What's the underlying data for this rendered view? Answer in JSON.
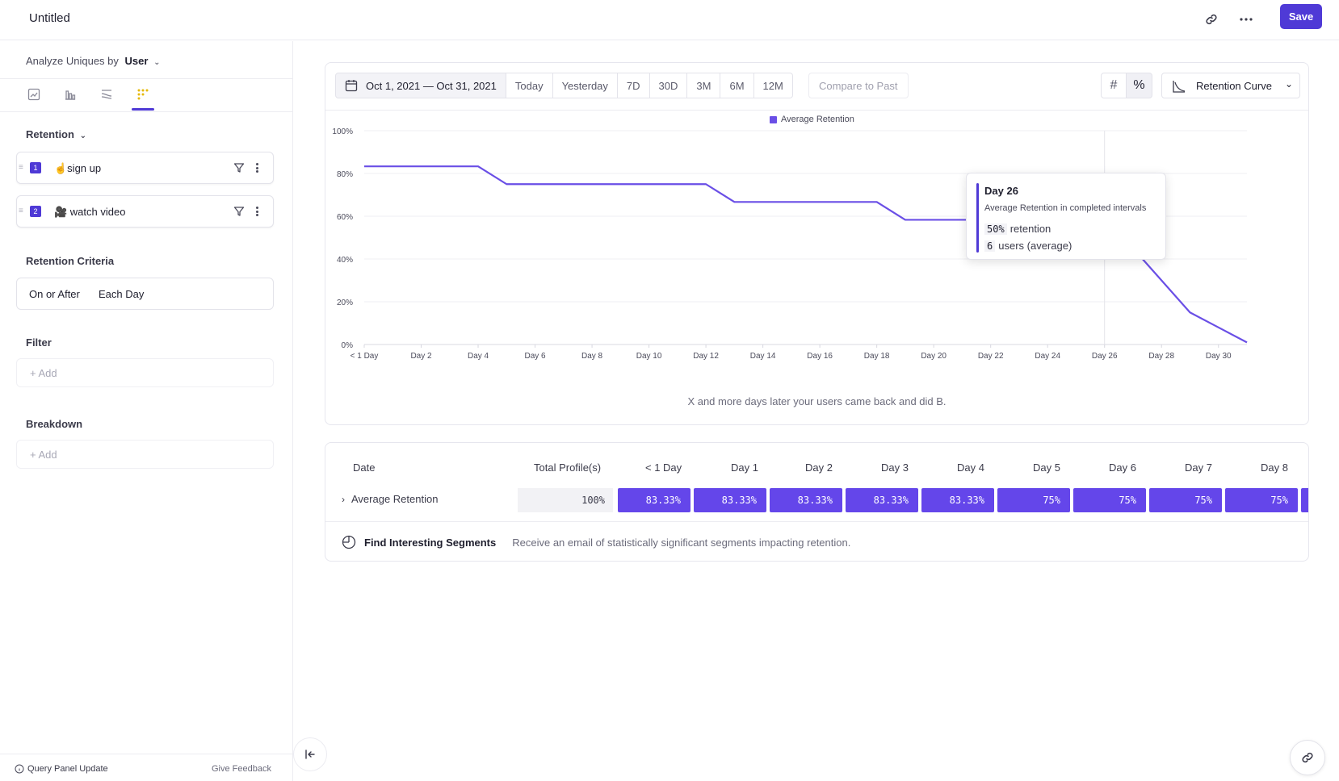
{
  "header": {
    "title": "Untitled",
    "save_label": "Save",
    "icons": [
      "link-icon",
      "more-horizontal-icon"
    ]
  },
  "sidebar": {
    "analyze_prefix": "Analyze Uniques by",
    "analyze_value": "User",
    "viz_tabs": [
      "line-chart-icon",
      "bar-chart-icon",
      "flows-icon",
      "retention-icon"
    ],
    "active_viz_tab": 3,
    "retention_label": "Retention",
    "events": [
      {
        "index": "1",
        "name": "☝️sign up"
      },
      {
        "index": "2",
        "name": "🎥 watch video"
      }
    ],
    "criteria_title": "Retention Criteria",
    "criteria_mode": "On or After",
    "criteria_interval": "Each Day",
    "filter_title": "Filter",
    "filter_add": "+ Add",
    "breakdown_title": "Breakdown",
    "breakdown_add": "+ Add",
    "footer_update": "Query Panel Update",
    "footer_feedback": "Give Feedback"
  },
  "toolbar": {
    "date_range": "Oct 1, 2021 — Oct 31, 2021",
    "presets": [
      "Today",
      "Yesterday",
      "7D",
      "30D",
      "3M",
      "6M",
      "12M"
    ],
    "compare": "Compare to Past",
    "number_toggle": [
      "#",
      "%"
    ],
    "chart_type": "Retention Curve"
  },
  "chart": {
    "legend": "Average Retention",
    "footer": "X and more days later your users came back and did B.",
    "tooltip": {
      "title": "Day 26",
      "subtitle": "Average Retention in completed intervals",
      "retention_value": "50%",
      "retention_label": "retention",
      "users_value": "6",
      "users_label": "users (average)"
    }
  },
  "chart_data": {
    "type": "line",
    "series": [
      {
        "name": "Average Retention",
        "values": [
          83.33,
          83.33,
          83.33,
          83.33,
          83.33,
          75,
          75,
          75,
          75,
          75,
          75,
          75,
          75,
          66.67,
          66.67,
          66.67,
          66.67,
          66.67,
          66.67,
          58.33,
          58.33,
          58.33,
          58.33,
          58.33,
          58.33,
          54,
          50,
          45,
          30,
          15,
          8,
          1
        ]
      }
    ],
    "x_tick_labels": [
      "< 1 Day",
      "Day 2",
      "Day 4",
      "Day 6",
      "Day 8",
      "Day 10",
      "Day 12",
      "Day 14",
      "Day 16",
      "Day 18",
      "Day 20",
      "Day 22",
      "Day 24",
      "Day 26",
      "Day 28",
      "Day 30"
    ],
    "y_tick_labels": [
      "0%",
      "20%",
      "40%",
      "60%",
      "80%",
      "100%"
    ],
    "ylim": [
      0,
      100
    ],
    "highlight_day": 26,
    "grid": true,
    "legend_position": "top-center",
    "color": "#6a4fe6"
  },
  "table": {
    "headers": [
      "Date",
      "Total Profile(s)",
      "< 1 Day",
      "Day 1",
      "Day 2",
      "Day 3",
      "Day 4",
      "Day 5",
      "Day 6",
      "Day 7",
      "Day 8"
    ],
    "row_label": "Average Retention",
    "total": "100%",
    "cells": [
      "83.33%",
      "83.33%",
      "83.33%",
      "83.33%",
      "83.33%",
      "75%",
      "75%",
      "75%",
      "75%"
    ],
    "segments_title": "Find Interesting Segments",
    "segments_desc": "Receive an email of statistically significant segments impacting retention."
  },
  "colors": {
    "accent": "#4f3ad6",
    "line": "#6a4fe6",
    "cell": "#6446ea"
  }
}
